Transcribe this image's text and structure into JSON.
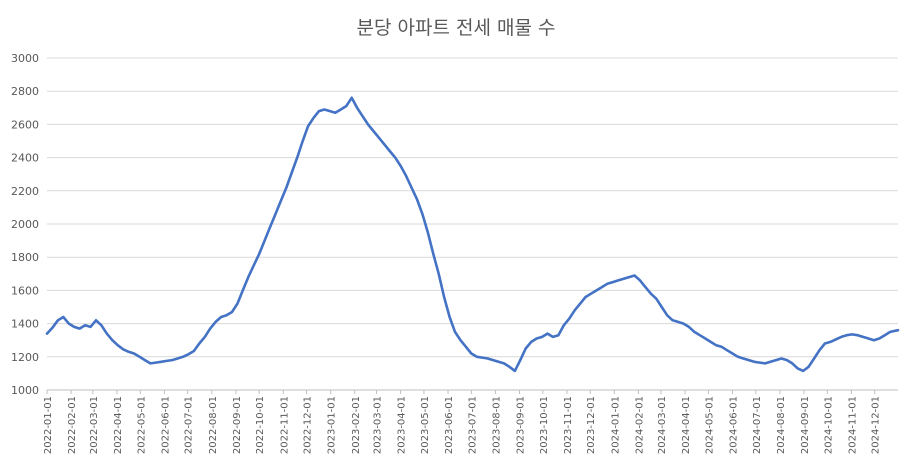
{
  "chart_data": {
    "type": "line",
    "title": "분당 아파트 전세 매물 수",
    "xlabel": "",
    "ylabel": "",
    "ylim": [
      1000,
      3000
    ],
    "yticks": [
      1000,
      1200,
      1400,
      1600,
      1800,
      2000,
      2200,
      2400,
      2600,
      2800,
      3000
    ],
    "grid": true,
    "legend": "none",
    "line_color": "#4472C4",
    "grid_color": "#D9D9D9",
    "xticks": [
      "2022-01-01",
      "2022-02-01",
      "2022-03-01",
      "2022-04-01",
      "2022-05-01",
      "2022-06-01",
      "2022-07-01",
      "2022-08-01",
      "2022-09-01",
      "2022-10-01",
      "2022-11-01",
      "2022-12-01",
      "2023-01-01",
      "2023-02-01",
      "2023-03-01",
      "2023-04-01",
      "2023-05-01",
      "2023-06-01",
      "2023-07-01",
      "2023-08-01",
      "2023-09-01",
      "2023-10-01",
      "2023-11-01",
      "2023-12-01",
      "2024-01-01",
      "2024-02-01",
      "2024-03-01",
      "2024-04-01",
      "2024-05-01",
      "2024-06-01",
      "2024-07-01",
      "2024-08-01",
      "2024-09-01",
      "2024-10-01",
      "2024-11-01",
      "2024-12-01"
    ],
    "series": [
      {
        "x": [
          "2022-01-01",
          "2022-01-08",
          "2022-01-15",
          "2022-01-22",
          "2022-01-29",
          "2022-02-05",
          "2022-02-12",
          "2022-02-19",
          "2022-02-26",
          "2022-03-05",
          "2022-03-12",
          "2022-03-19",
          "2022-03-26",
          "2022-04-02",
          "2022-04-09",
          "2022-04-16",
          "2022-04-23",
          "2022-04-30",
          "2022-05-07",
          "2022-05-14",
          "2022-05-21",
          "2022-05-28",
          "2022-06-04",
          "2022-06-11",
          "2022-06-18",
          "2022-06-25",
          "2022-07-02",
          "2022-07-09",
          "2022-07-16",
          "2022-07-23",
          "2022-07-30",
          "2022-08-06",
          "2022-08-13",
          "2022-08-20",
          "2022-08-27",
          "2022-09-03",
          "2022-09-10",
          "2022-09-17",
          "2022-09-24",
          "2022-10-01",
          "2022-10-08",
          "2022-10-15",
          "2022-10-22",
          "2022-10-29",
          "2022-11-05",
          "2022-11-12",
          "2022-11-19",
          "2022-11-26",
          "2022-12-03",
          "2022-12-10",
          "2022-12-17",
          "2022-12-24",
          "2022-12-31",
          "2023-01-07",
          "2023-01-14",
          "2023-01-21",
          "2023-01-28",
          "2023-02-04",
          "2023-02-11",
          "2023-02-18",
          "2023-02-25",
          "2023-03-04",
          "2023-03-11",
          "2023-03-18",
          "2023-03-25",
          "2023-04-01",
          "2023-04-08",
          "2023-04-15",
          "2023-04-22",
          "2023-04-29",
          "2023-05-06",
          "2023-05-13",
          "2023-05-20",
          "2023-05-27",
          "2023-06-03",
          "2023-06-10",
          "2023-06-17",
          "2023-06-24",
          "2023-07-01",
          "2023-07-08",
          "2023-07-15",
          "2023-07-22",
          "2023-07-29",
          "2023-08-05",
          "2023-08-12",
          "2023-08-19",
          "2023-08-26",
          "2023-09-02",
          "2023-09-09",
          "2023-09-16",
          "2023-09-23",
          "2023-09-30",
          "2023-10-07",
          "2023-10-14",
          "2023-10-21",
          "2023-10-28",
          "2023-11-04",
          "2023-11-11",
          "2023-11-18",
          "2023-11-25",
          "2023-12-02",
          "2023-12-09",
          "2023-12-16",
          "2023-12-23",
          "2023-12-30",
          "2024-01-06",
          "2024-01-13",
          "2024-01-20",
          "2024-01-27",
          "2024-02-03",
          "2024-02-10",
          "2024-02-17",
          "2024-02-24",
          "2024-03-02",
          "2024-03-09",
          "2024-03-16",
          "2024-03-23",
          "2024-03-30",
          "2024-04-06",
          "2024-04-13",
          "2024-04-20",
          "2024-04-27",
          "2024-05-04",
          "2024-05-11",
          "2024-05-18",
          "2024-05-25",
          "2024-06-01",
          "2024-06-08",
          "2024-06-15",
          "2024-06-22",
          "2024-06-29",
          "2024-07-06",
          "2024-07-13",
          "2024-07-20",
          "2024-07-27",
          "2024-08-03",
          "2024-08-10",
          "2024-08-17",
          "2024-08-24",
          "2024-08-31",
          "2024-09-07",
          "2024-09-14",
          "2024-09-21",
          "2024-09-28",
          "2024-10-05",
          "2024-10-12",
          "2024-10-19",
          "2024-10-26",
          "2024-11-02",
          "2024-11-09",
          "2024-11-16",
          "2024-11-23",
          "2024-11-30",
          "2024-12-07",
          "2024-12-14",
          "2024-12-21",
          "2024-12-31"
        ],
        "values": [
          1340,
          1375,
          1420,
          1440,
          1400,
          1380,
          1370,
          1390,
          1380,
          1420,
          1390,
          1340,
          1300,
          1270,
          1245,
          1230,
          1220,
          1200,
          1180,
          1160,
          1165,
          1170,
          1175,
          1180,
          1190,
          1200,
          1215,
          1235,
          1280,
          1320,
          1370,
          1410,
          1440,
          1450,
          1470,
          1520,
          1600,
          1680,
          1750,
          1820,
          1900,
          1980,
          2060,
          2140,
          2220,
          2310,
          2400,
          2500,
          2590,
          2640,
          2680,
          2690,
          2680,
          2670,
          2690,
          2710,
          2760,
          2700,
          2650,
          2600,
          2560,
          2520,
          2480,
          2440,
          2400,
          2350,
          2290,
          2220,
          2150,
          2060,
          1950,
          1820,
          1700,
          1560,
          1440,
          1350,
          1300,
          1260,
          1220,
          1200,
          1195,
          1190,
          1180,
          1170,
          1160,
          1140,
          1115,
          1180,
          1250,
          1290,
          1310,
          1320,
          1340,
          1320,
          1330,
          1390,
          1430,
          1480,
          1520,
          1560,
          1580,
          1600,
          1620,
          1640,
          1650,
          1660,
          1670,
          1680,
          1690,
          1660,
          1620,
          1580,
          1550,
          1500,
          1450,
          1420,
          1410,
          1400,
          1380,
          1350,
          1330,
          1310,
          1290,
          1270,
          1260,
          1240,
          1220,
          1200,
          1190,
          1180,
          1170,
          1165,
          1160,
          1170,
          1180,
          1190,
          1180,
          1160,
          1130,
          1115,
          1140,
          1190,
          1240,
          1280,
          1290,
          1305,
          1320,
          1330,
          1335,
          1330,
          1320,
          1310,
          1300,
          1310,
          1330,
          1350,
          1360
        ]
      }
    ]
  }
}
